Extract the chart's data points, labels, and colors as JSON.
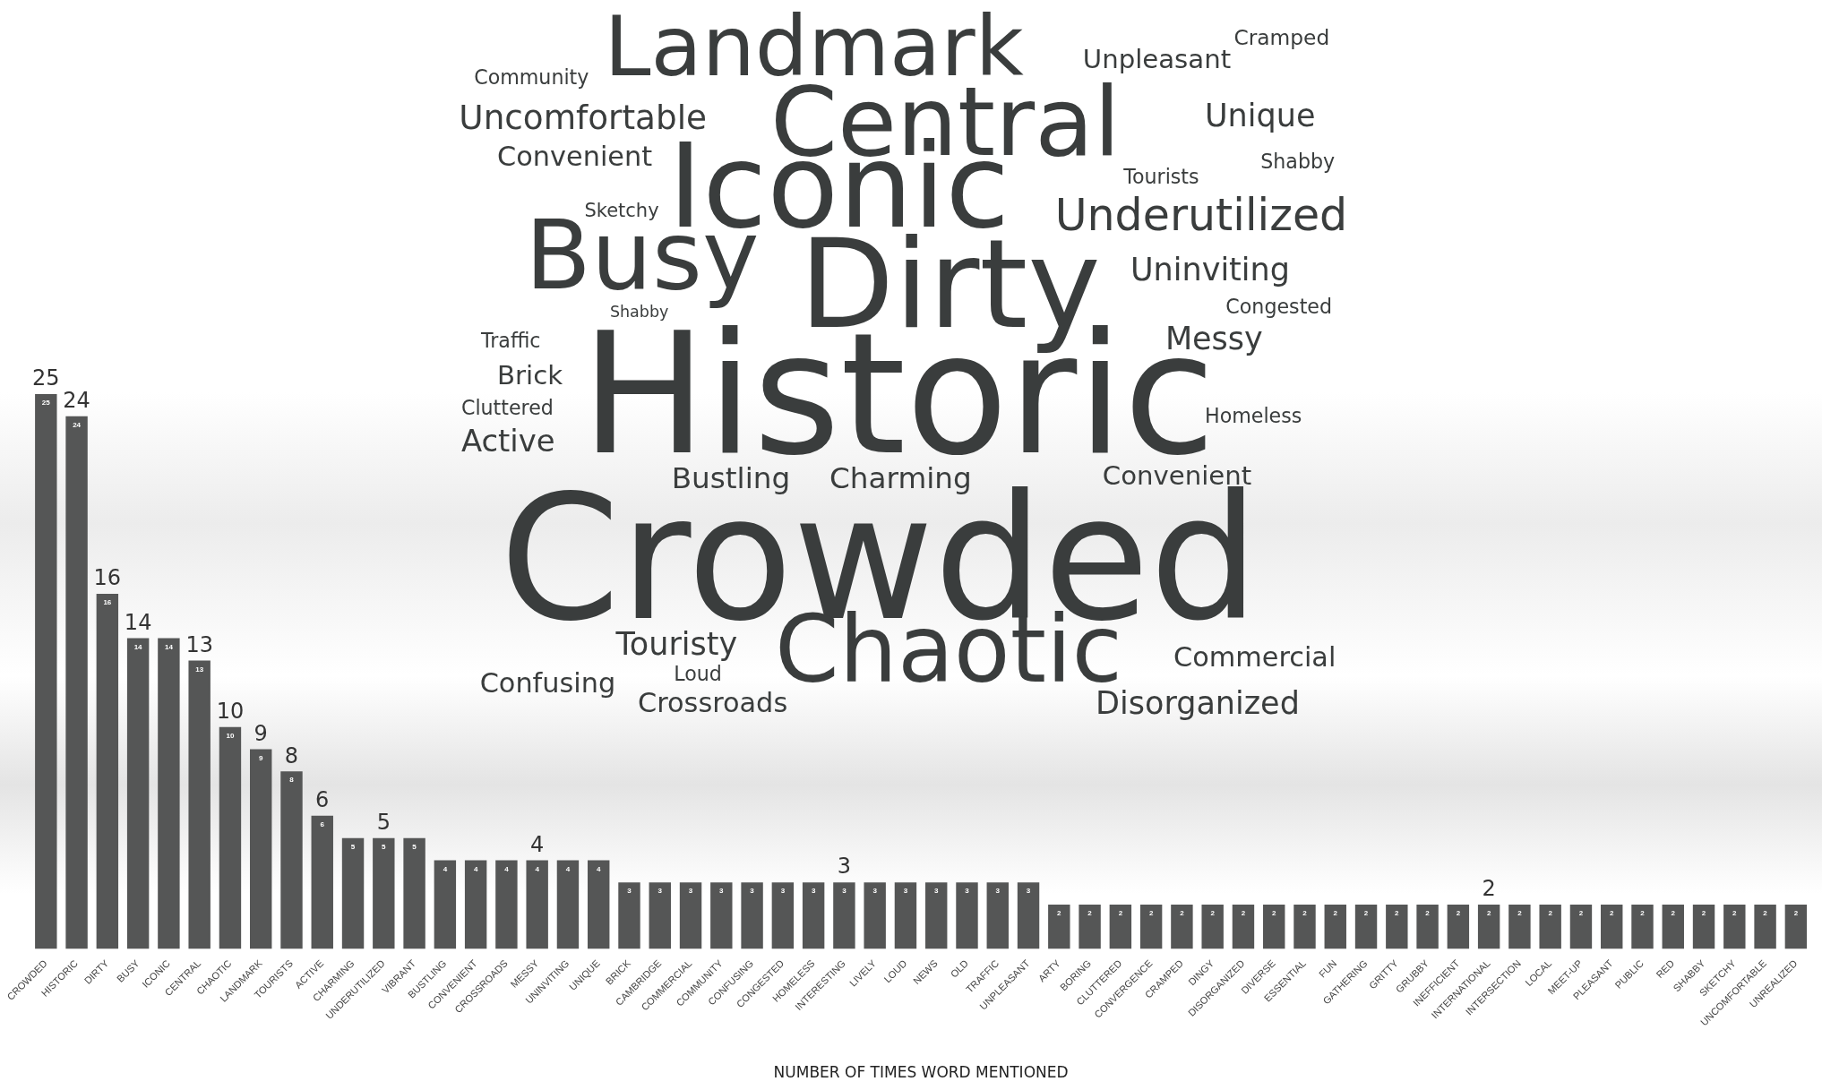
{
  "chart_data": {
    "type": "bar",
    "xlabel": "NUMBER OF TIMES WORD MENTIONED",
    "categories": [
      "CROWDED",
      "HISTORIC",
      "DIRTY",
      "BUSY",
      "ICONIC",
      "CENTRAL",
      "CHAOTIC",
      "LANDMARK",
      "TOURISTS",
      "ACTIVE",
      "CHARMING",
      "UNDERUTILIZED",
      "VIBRANT",
      "BUSTLING",
      "CONVENIENT",
      "CROSSROADS",
      "MESSY",
      "UNINVITING",
      "UNIQUE",
      "BRICK",
      "CAMBRIDGE",
      "COMMERCIAL",
      "COMMUNITY",
      "CONFUSING",
      "CONGESTED",
      "HOMELESS",
      "INTERESTING",
      "LIVELY",
      "LOUD",
      "NEWS",
      "OLD",
      "TRAFFIC",
      "UNPLEASANT",
      "ARTY",
      "BORING",
      "CLUTTERED",
      "CONVERGENCE",
      "CRAMPED",
      "DINGY",
      "DISORGANIZED",
      "DIVERSE",
      "ESSENTIAL",
      "FUN",
      "GATHERING",
      "GRITTY",
      "GRUBBY",
      "INEFFICIENT",
      "INTERNATIONAL",
      "INTERSECTION",
      "LOCAL",
      "MEET-UP",
      "PLEASANT",
      "PUBLIC",
      "RED",
      "SHABBY",
      "SKETCHY",
      "UNCOMFORTABLE",
      "UNREALIZED"
    ],
    "values": [
      25,
      24,
      16,
      14,
      14,
      13,
      10,
      9,
      8,
      6,
      5,
      5,
      5,
      4,
      4,
      4,
      4,
      4,
      4,
      3,
      3,
      3,
      3,
      3,
      3,
      3,
      3,
      3,
      3,
      3,
      3,
      3,
      3,
      2,
      2,
      2,
      2,
      2,
      2,
      2,
      2,
      2,
      2,
      2,
      2,
      2,
      2,
      2,
      2,
      2,
      2,
      2,
      2,
      2,
      2,
      2,
      2,
      2
    ],
    "color": "#555656",
    "data_labels": true,
    "grid": false,
    "legend": false,
    "annotations": [
      {
        "text": "25",
        "x": "CROWDED",
        "y": 25
      },
      {
        "text": "24",
        "x": "HISTORIC",
        "y": 24
      },
      {
        "text": "16",
        "x": "DIRTY",
        "y": 16
      },
      {
        "text": "14",
        "x": "BUSY",
        "y": 14
      },
      {
        "text": "13",
        "x": "CENTRAL",
        "y": 13
      },
      {
        "text": "10",
        "x": "CHAOTIC",
        "y": 10
      },
      {
        "text": "9",
        "x": "LANDMARK",
        "y": 9
      },
      {
        "text": "8",
        "x": "TOURISTS",
        "y": 8
      },
      {
        "text": "6",
        "x": "ACTIVE",
        "y": 6
      },
      {
        "text": "5",
        "x": "UNDERUTILIZED",
        "y": 5
      },
      {
        "text": "4",
        "x": "MESSY",
        "y": 4
      },
      {
        "text": "3",
        "x": "INTERESTING",
        "y": 3
      },
      {
        "text": "2",
        "x": "INTERNATIONAL",
        "y": 2
      },
      "Landmark",
      "Cramped",
      "Community",
      "Unpleasant",
      "Uncomfortable",
      "Central",
      "Unique",
      "Convenient",
      "Shabby",
      "Tourists",
      "Iconic",
      "Underutilized",
      "Sketchy",
      "Busy",
      "Dirty",
      "Uninviting",
      "Shabby",
      "Congested",
      "Traffic",
      "Messy",
      "Brick",
      "Historic",
      "Cluttered",
      "Homeless",
      "Active",
      "Bustling",
      "Charming",
      "Convenient",
      "Crowded",
      "Touristy",
      "Chaotic",
      "Commercial",
      "Loud",
      "Confusing",
      "Crossroads",
      "Disorganized"
    ]
  }
}
